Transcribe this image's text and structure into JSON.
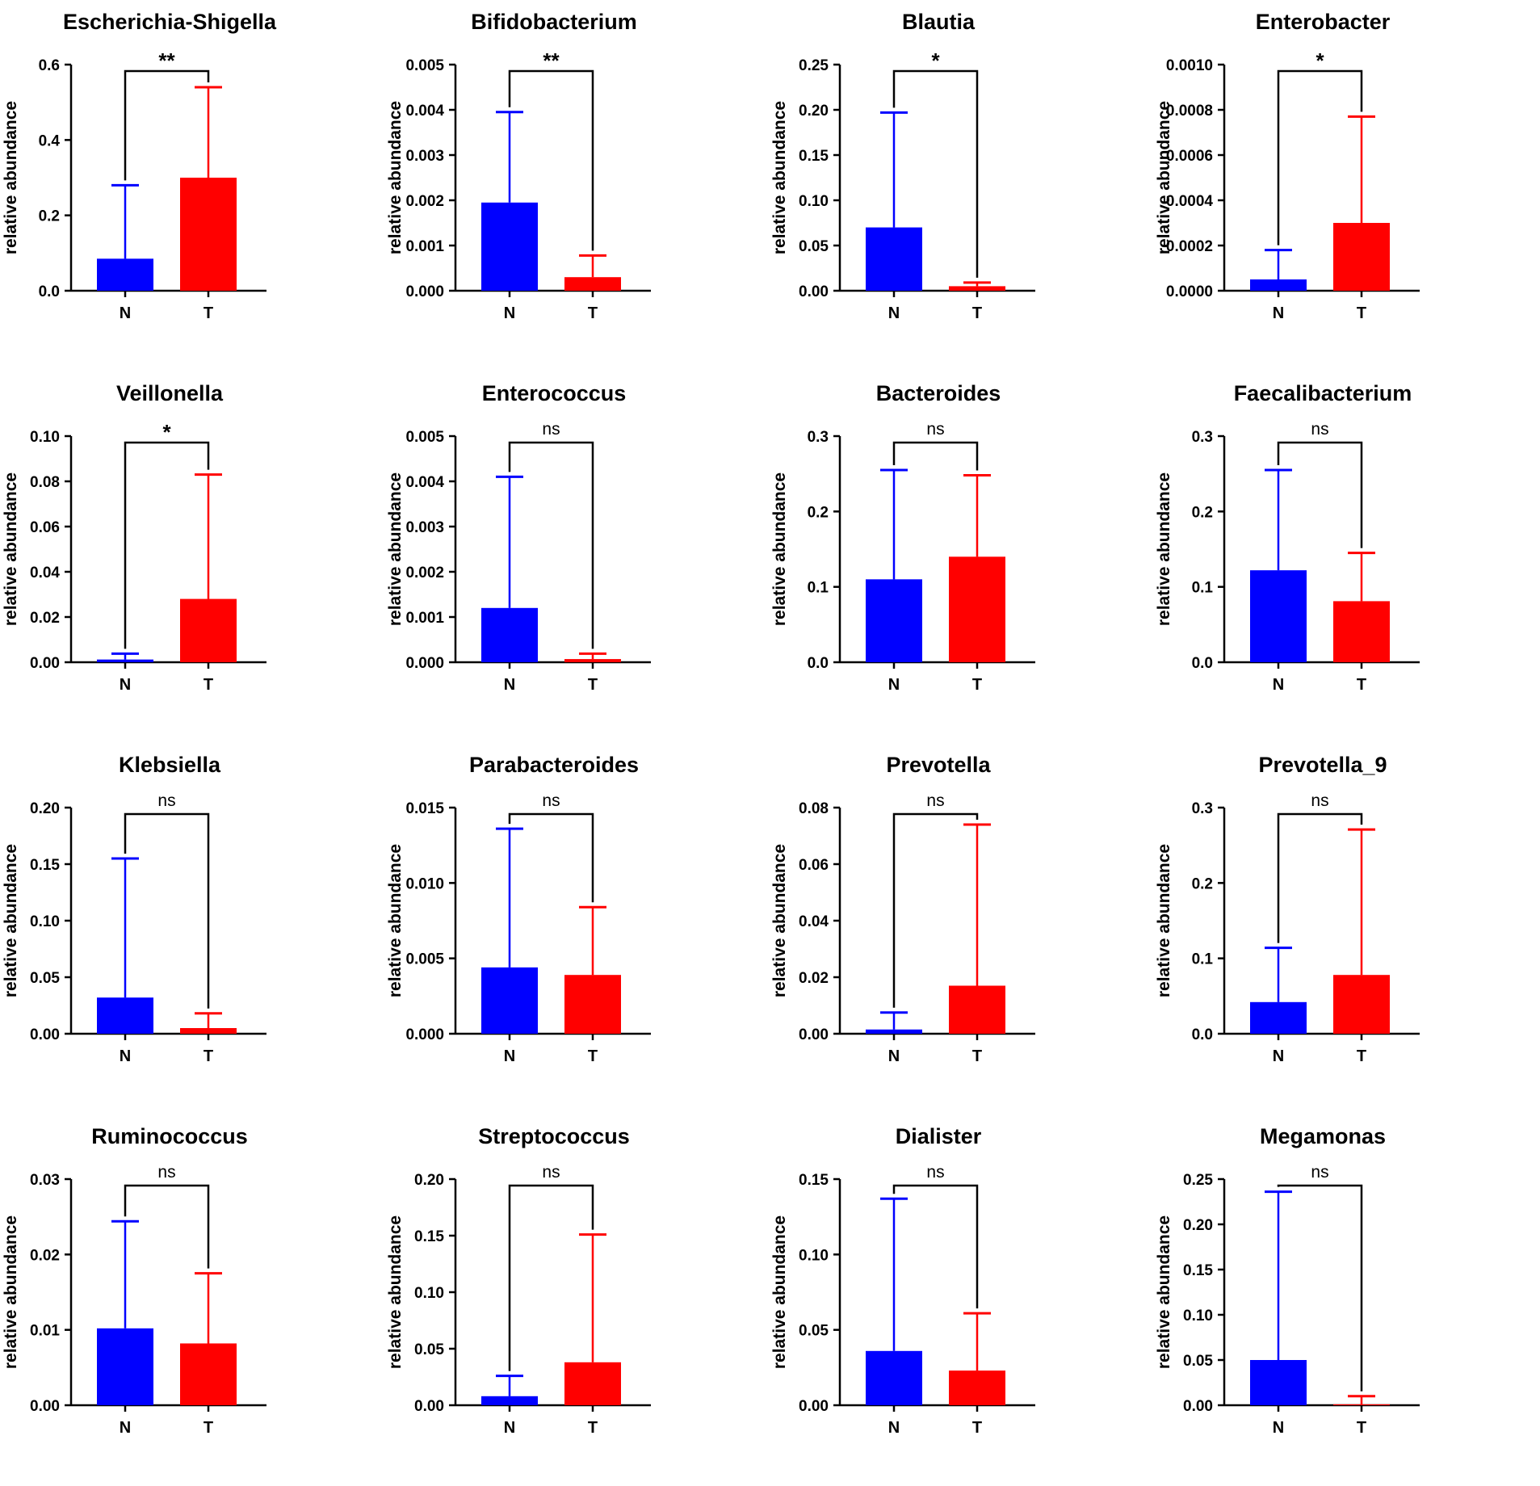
{
  "colors": {
    "N": "#0000ff",
    "T": "#ff0000",
    "axis": "#000000"
  },
  "chart_data": [
    {
      "type": "bar",
      "title": "Escherichia-Shigella",
      "ylabel": "relative abundance",
      "categories": [
        "N",
        "T"
      ],
      "values": [
        0.085,
        0.3
      ],
      "errors": [
        0.195,
        0.24
      ],
      "ylim": [
        0,
        0.6
      ],
      "yticks": [
        "0.0",
        "0.2",
        "0.4",
        "0.6"
      ],
      "significance": "**"
    },
    {
      "type": "bar",
      "title": "Bifidobacterium",
      "ylabel": "relative abundance",
      "categories": [
        "N",
        "T"
      ],
      "values": [
        0.00195,
        0.0003
      ],
      "errors": [
        0.002,
        0.00048
      ],
      "ylim": [
        0,
        0.005
      ],
      "yticks": [
        "0.000",
        "0.001",
        "0.002",
        "0.003",
        "0.004",
        "0.005"
      ],
      "significance": "**"
    },
    {
      "type": "bar",
      "title": "Blautia",
      "ylabel": "relative abundance",
      "categories": [
        "N",
        "T"
      ],
      "values": [
        0.07,
        0.005
      ],
      "errors": [
        0.127,
        0.004
      ],
      "ylim": [
        0,
        0.25
      ],
      "yticks": [
        "0.00",
        "0.05",
        "0.10",
        "0.15",
        "0.20",
        "0.25"
      ],
      "significance": "*"
    },
    {
      "type": "bar",
      "title": "Enterobacter",
      "ylabel": "relative abundance",
      "categories": [
        "N",
        "T"
      ],
      "values": [
        5e-05,
        0.0003
      ],
      "errors": [
        0.00013,
        0.00047
      ],
      "ylim": [
        0,
        0.001
      ],
      "yticks": [
        "0.0000",
        "0.0002",
        "0.0004",
        "0.0006",
        "0.0008",
        "0.0010"
      ],
      "significance": "*"
    },
    {
      "type": "bar",
      "title": "Veillonella",
      "ylabel": "relative abundance",
      "categories": [
        "N",
        "T"
      ],
      "values": [
        0.0012,
        0.028
      ],
      "errors": [
        0.0026,
        0.055
      ],
      "ylim": [
        0,
        0.1
      ],
      "yticks": [
        "0.00",
        "0.02",
        "0.04",
        "0.06",
        "0.08",
        "0.10"
      ],
      "significance": "*"
    },
    {
      "type": "bar",
      "title": "Enterococcus",
      "ylabel": "relative abundance",
      "categories": [
        "N",
        "T"
      ],
      "values": [
        0.0012,
        7e-05
      ],
      "errors": [
        0.0029,
        0.00012
      ],
      "ylim": [
        0,
        0.005
      ],
      "yticks": [
        "0.000",
        "0.001",
        "0.002",
        "0.003",
        "0.004",
        "0.005"
      ],
      "significance": "ns"
    },
    {
      "type": "bar",
      "title": "Bacteroides",
      "ylabel": "relative abundance",
      "categories": [
        "N",
        "T"
      ],
      "values": [
        0.11,
        0.14
      ],
      "errors": [
        0.145,
        0.108
      ],
      "ylim": [
        0,
        0.3
      ],
      "yticks": [
        "0.0",
        "0.1",
        "0.2",
        "0.3"
      ],
      "significance": "ns"
    },
    {
      "type": "bar",
      "title": "Faecalibacterium",
      "ylabel": "relative abundance",
      "categories": [
        "N",
        "T"
      ],
      "values": [
        0.122,
        0.081
      ],
      "errors": [
        0.133,
        0.064
      ],
      "ylim": [
        0,
        0.3
      ],
      "yticks": [
        "0.0",
        "0.1",
        "0.2",
        "0.3"
      ],
      "significance": "ns"
    },
    {
      "type": "bar",
      "title": "Klebsiella",
      "ylabel": "relative abundance",
      "categories": [
        "N",
        "T"
      ],
      "values": [
        0.032,
        0.005
      ],
      "errors": [
        0.123,
        0.013
      ],
      "ylim": [
        0,
        0.2
      ],
      "yticks": [
        "0.00",
        "0.05",
        "0.10",
        "0.15",
        "0.20"
      ],
      "significance": "ns"
    },
    {
      "type": "bar",
      "title": "Parabacteroides",
      "ylabel": "relative abundance",
      "categories": [
        "N",
        "T"
      ],
      "values": [
        0.0044,
        0.0039
      ],
      "errors": [
        0.0092,
        0.0045
      ],
      "ylim": [
        0,
        0.015
      ],
      "yticks": [
        "0.000",
        "0.005",
        "0.010",
        "0.015"
      ],
      "significance": "ns"
    },
    {
      "type": "bar",
      "title": "Prevotella",
      "ylabel": "relative abundance",
      "categories": [
        "N",
        "T"
      ],
      "values": [
        0.0015,
        0.017
      ],
      "errors": [
        0.006,
        0.057
      ],
      "ylim": [
        0,
        0.08
      ],
      "yticks": [
        "0.00",
        "0.02",
        "0.04",
        "0.06",
        "0.08"
      ],
      "significance": "ns"
    },
    {
      "type": "bar",
      "title": "Prevotella_9",
      "ylabel": "relative abundance",
      "categories": [
        "N",
        "T"
      ],
      "values": [
        0.042,
        0.078
      ],
      "errors": [
        0.072,
        0.193
      ],
      "ylim": [
        0,
        0.3
      ],
      "yticks": [
        "0.0",
        "0.1",
        "0.2",
        "0.3"
      ],
      "significance": "ns"
    },
    {
      "type": "bar",
      "title": "Ruminococcus",
      "ylabel": "relative abundance",
      "categories": [
        "N",
        "T"
      ],
      "values": [
        0.0102,
        0.0082
      ],
      "errors": [
        0.0142,
        0.0093
      ],
      "ylim": [
        0,
        0.03
      ],
      "yticks": [
        "0.00",
        "0.01",
        "0.02",
        "0.03"
      ],
      "significance": "ns"
    },
    {
      "type": "bar",
      "title": "Streptococcus",
      "ylabel": "relative abundance",
      "categories": [
        "N",
        "T"
      ],
      "values": [
        0.008,
        0.038
      ],
      "errors": [
        0.018,
        0.113
      ],
      "ylim": [
        0,
        0.2
      ],
      "yticks": [
        "0.00",
        "0.05",
        "0.10",
        "0.15",
        "0.20"
      ],
      "significance": "ns"
    },
    {
      "type": "bar",
      "title": "Dialister",
      "ylabel": "relative abundance",
      "categories": [
        "N",
        "T"
      ],
      "values": [
        0.036,
        0.023
      ],
      "errors": [
        0.101,
        0.038
      ],
      "ylim": [
        0,
        0.15
      ],
      "yticks": [
        "0.00",
        "0.05",
        "0.10",
        "0.15"
      ],
      "significance": "ns"
    },
    {
      "type": "bar",
      "title": "Megamonas",
      "ylabel": "relative abundance",
      "categories": [
        "N",
        "T"
      ],
      "values": [
        0.05,
        0.001
      ],
      "errors": [
        0.186,
        0.009
      ],
      "ylim": [
        0,
        0.25
      ],
      "yticks": [
        "0.00",
        "0.05",
        "0.10",
        "0.15",
        "0.20",
        "0.25"
      ],
      "significance": "ns"
    }
  ]
}
